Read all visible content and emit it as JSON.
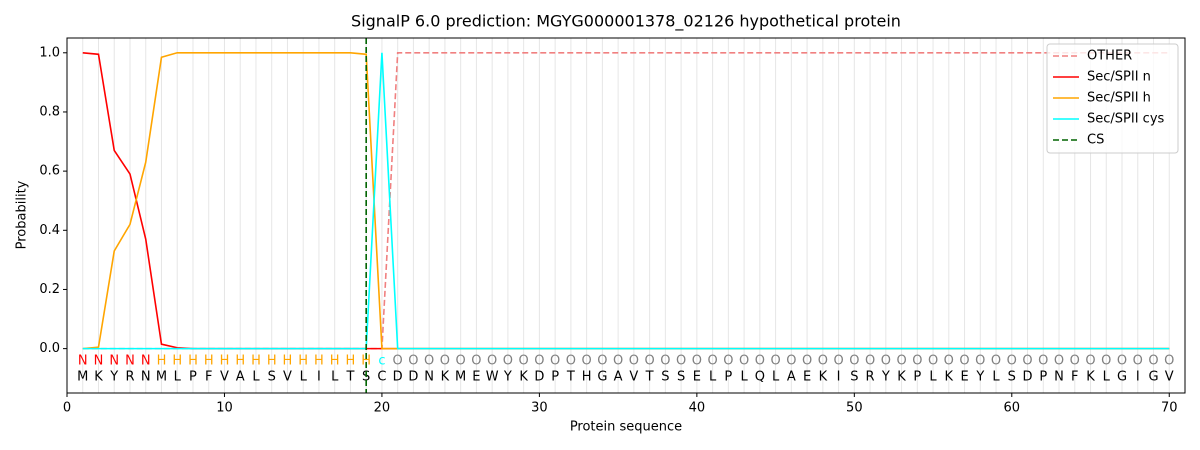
{
  "chart_data": {
    "type": "line",
    "title": "SignalP 6.0 prediction: MGYG000001378_02126 hypothetical protein",
    "x_label": "Protein sequence",
    "y_label": "Probability",
    "xlim": [
      0,
      71
    ],
    "ylim": [
      -0.15,
      1.05
    ],
    "xticks": [
      0,
      10,
      20,
      30,
      40,
      50,
      60,
      70
    ],
    "yticks": [
      {
        "value": 0,
        "label": "0.0"
      },
      0.2,
      0.4,
      0.6,
      0.8,
      {
        "value": 1,
        "label": "1.0"
      }
    ],
    "legend": "upper right",
    "x": [
      1,
      2,
      3,
      4,
      5,
      6,
      7,
      8,
      9,
      10,
      11,
      12,
      13,
      14,
      15,
      16,
      17,
      18,
      19,
      20,
      21,
      22,
      23,
      24,
      25,
      26,
      27,
      28,
      29,
      30,
      31,
      32,
      33,
      34,
      35,
      36,
      37,
      38,
      39,
      40,
      41,
      42,
      43,
      44,
      45,
      46,
      47,
      48,
      49,
      50,
      51,
      52,
      53,
      54,
      55,
      56,
      57,
      58,
      59,
      60,
      61,
      62,
      63,
      64,
      65,
      66,
      67,
      68,
      69,
      70
    ],
    "sequence": [
      "M",
      "K",
      "Y",
      "R",
      "N",
      "M",
      "L",
      "P",
      "F",
      "V",
      "A",
      "L",
      "S",
      "V",
      "L",
      "I",
      "L",
      "T",
      "S",
      "C",
      "D",
      "D",
      "N",
      "K",
      "M",
      "E",
      "W",
      "Y",
      "K",
      "D",
      "P",
      "T",
      "H",
      "G",
      "A",
      "V",
      "T",
      "S",
      "S",
      "E",
      "L",
      "P",
      "L",
      "Q",
      "L",
      "A",
      "E",
      "K",
      "I",
      "S",
      "R",
      "Y",
      "K",
      "P",
      "L",
      "K",
      "E",
      "Y",
      "L",
      "S",
      "D",
      "P",
      "N",
      "F",
      "K",
      "L",
      "G",
      "I",
      "G",
      "V"
    ],
    "labels": [
      "N",
      "N",
      "N",
      "N",
      "N",
      "H",
      "H",
      "H",
      "H",
      "H",
      "H",
      "H",
      "H",
      "H",
      "H",
      "H",
      "H",
      "H",
      "H",
      "c",
      "O",
      "O",
      "O",
      "O",
      "O",
      "O",
      "O",
      "O",
      "O",
      "O",
      "O",
      "O",
      "O",
      "O",
      "O",
      "O",
      "O",
      "O",
      "O",
      "O",
      "O",
      "O",
      "O",
      "O",
      "O",
      "O",
      "O",
      "O",
      "O",
      "O",
      "O",
      "O",
      "O",
      "O",
      "O",
      "O",
      "O",
      "O",
      "O",
      "O",
      "O",
      "O",
      "O",
      "O",
      "O",
      "O",
      "O",
      "O",
      "O",
      "O"
    ],
    "label_colors": {
      "N": "#ff0000",
      "H": "#ffa500",
      "c": "#00ffff",
      "O": "#808080"
    },
    "series": [
      {
        "name": "OTHER",
        "color": "#f08080",
        "dashed": true,
        "values": [
          0,
          0,
          0,
          0,
          0,
          0,
          0,
          0,
          0,
          0,
          0,
          0,
          0,
          0,
          0,
          0,
          0,
          0,
          0,
          0,
          1,
          1,
          1,
          1,
          1,
          1,
          1,
          1,
          1,
          1,
          1,
          1,
          1,
          1,
          1,
          1,
          1,
          1,
          1,
          1,
          1,
          1,
          1,
          1,
          1,
          1,
          1,
          1,
          1,
          1,
          1,
          1,
          1,
          1,
          1,
          1,
          1,
          1,
          1,
          1,
          1,
          1,
          1,
          1,
          1,
          1,
          1,
          1,
          1,
          1
        ]
      },
      {
        "name": "Sec/SPII n",
        "color": "#ff0000",
        "values": [
          1,
          0.995,
          0.67,
          0.59,
          0.37,
          0.015,
          0.003,
          0,
          0,
          0,
          0,
          0,
          0,
          0,
          0,
          0,
          0,
          0,
          0,
          0,
          0,
          0,
          0,
          0,
          0,
          0,
          0,
          0,
          0,
          0,
          0,
          0,
          0,
          0,
          0,
          0,
          0,
          0,
          0,
          0,
          0,
          0,
          0,
          0,
          0,
          0,
          0,
          0,
          0,
          0,
          0,
          0,
          0,
          0,
          0,
          0,
          0,
          0,
          0,
          0,
          0,
          0,
          0,
          0,
          0,
          0,
          0,
          0,
          0,
          0
        ]
      },
      {
        "name": "Sec/SPII h",
        "color": "#ffa500",
        "values": [
          0,
          0.005,
          0.33,
          0.42,
          0.63,
          0.985,
          1,
          1,
          1,
          1,
          1,
          1,
          1,
          1,
          1,
          1,
          1,
          1,
          0.995,
          0,
          0,
          0,
          0,
          0,
          0,
          0,
          0,
          0,
          0,
          0,
          0,
          0,
          0,
          0,
          0,
          0,
          0,
          0,
          0,
          0,
          0,
          0,
          0,
          0,
          0,
          0,
          0,
          0,
          0,
          0,
          0,
          0,
          0,
          0,
          0,
          0,
          0,
          0,
          0,
          0,
          0,
          0,
          0,
          0,
          0,
          0,
          0,
          0,
          0,
          0
        ]
      },
      {
        "name": "Sec/SPII cys",
        "color": "#00ffff",
        "values": [
          0,
          0,
          0,
          0,
          0,
          0,
          0,
          0,
          0,
          0,
          0,
          0,
          0,
          0,
          0,
          0,
          0,
          0,
          0,
          1,
          0,
          0,
          0,
          0,
          0,
          0,
          0,
          0,
          0,
          0,
          0,
          0,
          0,
          0,
          0,
          0,
          0,
          0,
          0,
          0,
          0,
          0,
          0,
          0,
          0,
          0,
          0,
          0,
          0,
          0,
          0,
          0,
          0,
          0,
          0,
          0,
          0,
          0,
          0,
          0,
          0,
          0,
          0,
          0,
          0,
          0,
          0,
          0,
          0,
          0
        ]
      }
    ],
    "cs": {
      "name": "CS",
      "color": "#006400",
      "x": 19
    }
  }
}
